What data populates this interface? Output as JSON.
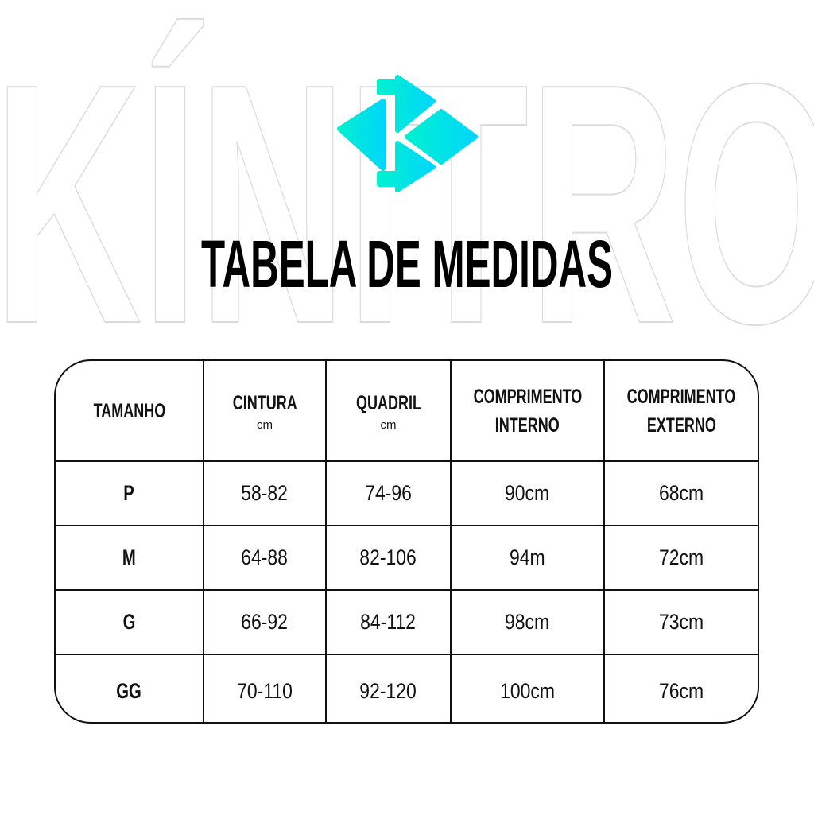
{
  "watermark": "KÍNITRO",
  "brand_colors": {
    "logo_start": "#00f0d0",
    "logo_end": "#00d6fa"
  },
  "title": "TABELA DE MEDIDAS",
  "table": {
    "headers": [
      {
        "label": "TAMANHO",
        "unit": ""
      },
      {
        "label": "CINTURA",
        "unit": "cm"
      },
      {
        "label": "QUADRIL",
        "unit": "cm"
      },
      {
        "label": "COMPRIMENTO",
        "label2": "INTERNO",
        "unit": ""
      },
      {
        "label": "COMPRIMENTO",
        "label2": "EXTERNO",
        "unit": ""
      }
    ],
    "rows": [
      [
        "P",
        "58-82",
        "74-96",
        "90cm",
        "68cm"
      ],
      [
        "M",
        "64-88",
        "82-106",
        "94m",
        "72cm"
      ],
      [
        "G",
        "66-92",
        "84-112",
        "98cm",
        "73cm"
      ],
      [
        "GG",
        "70-110",
        "92-120",
        "100cm",
        "76cm"
      ]
    ]
  }
}
